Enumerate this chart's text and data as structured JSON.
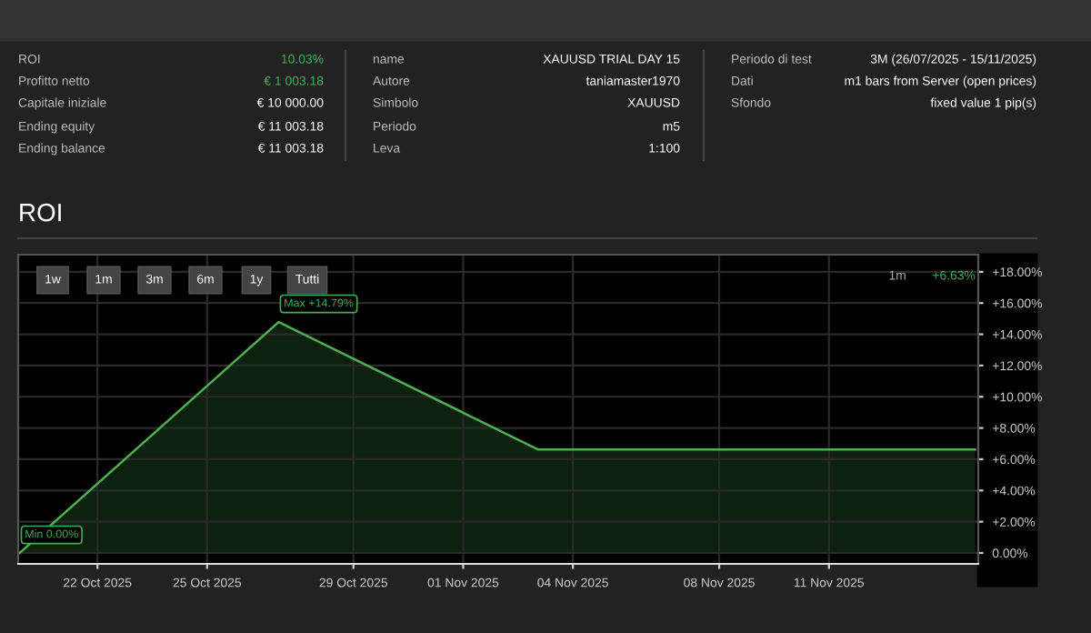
{
  "chart_data": [
    {
      "type": "other",
      "annotations": [
        "ROI",
        "10.03%",
        "Profitto netto",
        "€ 1 003.18",
        "Capitale iniziale",
        "€ 10 000.00",
        "Ending equity",
        "€ 11 003.18",
        "Ending balance",
        "€ 11 003.18",
        "name",
        "XAUUSD TRIAL DAY 15",
        "Autore",
        "taniamaster1970",
        "Simbolo",
        "XAUUSD",
        "Periodo",
        "m5",
        "Leva",
        "1:100",
        "Periodo di test",
        "3M (26/07/2025 - 15/11/2025)",
        "Dati",
        "m1 bars from Server (open prices)",
        "Sfondo",
        "fixed value 1 pip(s)"
      ]
    },
    {
      "type": "area",
      "title": "ROI",
      "series": [
        {
          "color": "#4caf50",
          "x": [
            "2025-10-19T21:00",
            "2025-10-26T23:00",
            "2025-11-03T01:00",
            "2025-11-15T00:00"
          ],
          "values": [
            0,
            14.79,
            6.63,
            6.63
          ]
        }
      ],
      "xlim": [
        "2025-10-19T20:00",
        "2025-11-15T02:00"
      ],
      "xticks": [
        {
          "value": "2025-10-22",
          "label": "22 Oct 2025"
        },
        {
          "value": "2025-10-25",
          "label": "25 Oct 2025"
        },
        {
          "value": "2025-10-29",
          "label": "29 Oct 2025"
        },
        {
          "value": "2025-11-01",
          "label": "01 Nov 2025"
        },
        {
          "value": "2025-11-04",
          "label": "04 Nov 2025"
        },
        {
          "value": "2025-11-08",
          "label": "08 Nov 2025"
        },
        {
          "value": "2025-11-11",
          "label": "11 Nov 2025"
        }
      ],
      "ylim": [
        -0.7,
        19.1
      ],
      "yticks": [
        {
          "value": 0,
          "label": "0.00%"
        },
        {
          "value": 2,
          "label": "+2.00%"
        },
        {
          "value": 4,
          "label": "+4.00%"
        },
        {
          "value": 6,
          "label": "+6.00%"
        },
        {
          "value": 8,
          "label": "+8.00%"
        },
        {
          "value": 10,
          "label": "+10.00%"
        },
        {
          "value": 12,
          "label": "+12.00%"
        },
        {
          "value": 14,
          "label": "+14.00%"
        },
        {
          "value": 16,
          "label": "+16.00%"
        },
        {
          "value": 18,
          "label": "+18.00%"
        }
      ],
      "grid": true,
      "marker": "none",
      "annotations": [
        {
          "text": "Max +14.79%",
          "x": "2025-10-26T23:00",
          "y": 14.79
        },
        {
          "text": "Min 0.00%",
          "x": "2025-10-19T21:00",
          "y": 0
        },
        "1m",
        "+6.63%",
        "1w",
        "1m",
        "3m",
        "6m",
        "1y",
        "Tutti"
      ]
    }
  ]
}
